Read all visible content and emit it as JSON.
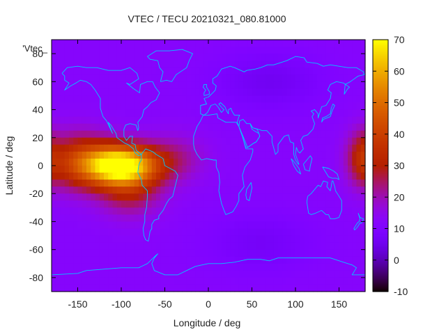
{
  "chart_data": {
    "type": "heatmap",
    "title": "VTEC / TECU 20210321_080.81000",
    "xlabel": "Longitude / deg",
    "ylabel": "Latitude / deg",
    "key_label": "'Vtec_",
    "xlim": [
      -180,
      180
    ],
    "ylim": [
      -90,
      90
    ],
    "xticks": [
      -150,
      -100,
      -50,
      0,
      50,
      100,
      150
    ],
    "yticks": [
      -80,
      -60,
      -40,
      -20,
      0,
      20,
      40,
      60,
      80
    ],
    "colorbar": {
      "min": -10,
      "max": 70,
      "ticks": [
        -10,
        0,
        10,
        20,
        30,
        40,
        50,
        60,
        70
      ],
      "palette": "gnuplot-pm3d-black-purple-red-yellow"
    },
    "background_level_tecu": 12,
    "features": [
      {
        "name": "equatorial-anomaly-peak",
        "lon": -100,
        "lat": 0,
        "vtec": 62,
        "sigma_lon": 28,
        "sigma_lat": 10
      },
      {
        "name": "equatorial-anomaly-west",
        "lon": -150,
        "lat": 3,
        "vtec": 24,
        "sigma_lon": 28,
        "sigma_lat": 14
      },
      {
        "name": "equatorial-anomaly-south",
        "lon": -90,
        "lat": -20,
        "vtec": 14,
        "sigma_lon": 25,
        "sigma_lat": 12
      },
      {
        "name": "equatorial-anomaly-atlantic",
        "lon": -40,
        "lat": 5,
        "vtec": 10,
        "sigma_lon": 25,
        "sigma_lat": 12
      },
      {
        "name": "dateline-enhancement",
        "lon": 182,
        "lat": 5,
        "vtec": 28,
        "sigma_lon": 15,
        "sigma_lat": 14
      },
      {
        "name": "dateline-enhancement-west",
        "lon": -182,
        "lat": 5,
        "vtec": 10,
        "sigma_lon": 8,
        "sigma_lat": 14
      },
      {
        "name": "north-low",
        "lon": 70,
        "lat": 60,
        "vtec": -6,
        "sigma_lon": 45,
        "sigma_lat": 15
      },
      {
        "name": "south-low",
        "lon": 60,
        "lat": -55,
        "vtec": -5,
        "sigma_lon": 45,
        "sigma_lat": 15
      }
    ]
  }
}
